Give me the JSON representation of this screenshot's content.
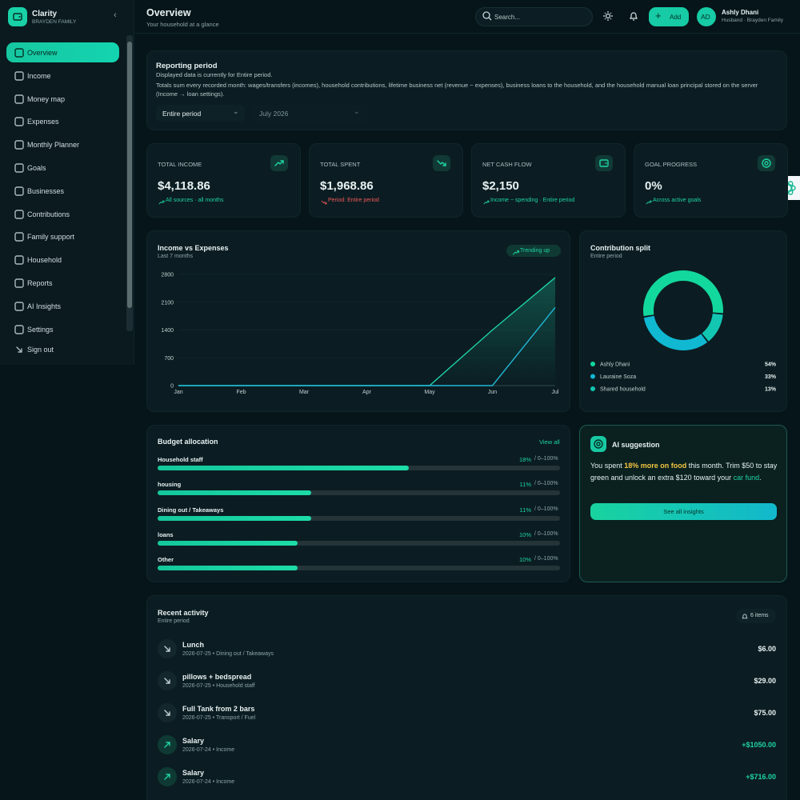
{
  "sidebar": {
    "brand": "Clarity",
    "family": "BRAYDEN FAMILY",
    "nav": [
      "Overview",
      "Income",
      "Money map",
      "Expenses",
      "Monthly Planner",
      "Goals",
      "Businesses",
      "Contributions",
      "Family support",
      "Household",
      "Reports",
      "AI Insights",
      "Settings"
    ],
    "sign_out": "Sign out"
  },
  "header": {
    "title": "Overview",
    "subtitle": "Your household at a glance",
    "search": "Search...",
    "add": "Add",
    "avatar": "AD",
    "user": "Ashly Dhani",
    "role": "Husband · Brayden Family"
  },
  "reporting": {
    "title": "Reporting period",
    "note": "Displayed data is currently for Entire period.",
    "description": "Totals sum every recorded month: wages/transfers (incomes), household contributions, lifetime business net (revenue − expenses), business loans to the household, and the household manual loan principal stored on the server (Income → loan settings).",
    "period": "Entire period",
    "month": "July 2026"
  },
  "stats": [
    {
      "label": "TOTAL INCOME",
      "value": "$4,118.86",
      "note": "All sources · all months",
      "tone": "up"
    },
    {
      "label": "TOTAL SPENT",
      "value": "$1,968.86",
      "note": "Period: Entire period",
      "tone": "down"
    },
    {
      "label": "NET CASH FLOW",
      "value": "$2,150",
      "note": "Income − spending · Entire period",
      "tone": "wallet"
    },
    {
      "label": "GOAL PROGRESS",
      "value": "0%",
      "note": "Across active goals",
      "tone": "goal"
    }
  ],
  "income_chart": {
    "type": "line",
    "title": "Income vs Expenses",
    "subtitle": "Last 7 months",
    "badge": "Trending up",
    "categories": [
      "Jan",
      "Feb",
      "Mar",
      "Apr",
      "May",
      "Jun",
      "Jul"
    ],
    "series": [
      {
        "color": "#1fd0a8",
        "values": [
          0,
          0,
          0,
          0,
          0,
          1400,
          2720
        ]
      },
      {
        "color": "#22b6d6",
        "values": [
          0,
          0,
          0,
          0,
          0,
          0,
          1969
        ]
      }
    ],
    "ylim": [
      0,
      2800
    ],
    "yticks": [
      0,
      700,
      1400,
      2100,
      2800
    ],
    "grid": true
  },
  "contribution": {
    "type": "pie",
    "title": "Contribution split",
    "subtitle": "Entire period",
    "items": [
      {
        "name": "Ashly Dhani",
        "value": 54,
        "label": "54%",
        "color": "#13d89d"
      },
      {
        "name": "Lauraine Soza",
        "value": 33,
        "label": "33%",
        "color": "#10b8d2"
      },
      {
        "name": "Shared household",
        "value": 13,
        "label": "13%",
        "color": "#12c6b2"
      }
    ]
  },
  "budget": {
    "title": "Budget allocation",
    "link": "View all",
    "range": "/ 0–100%",
    "items": [
      {
        "name": "Household staff",
        "value": 18,
        "label": "18%"
      },
      {
        "name": "housing",
        "value": 11,
        "label": "11%"
      },
      {
        "name": "Dining out / Takeaways",
        "value": 11,
        "label": "11%"
      },
      {
        "name": "loans",
        "value": 10,
        "label": "10%"
      },
      {
        "name": "Other",
        "value": 10,
        "label": "10%"
      }
    ]
  },
  "ai": {
    "title": "AI suggestion",
    "before": "You spent ",
    "highlight": "18% more on food",
    "middle": " this month. Trim $50 to stay green and unlock an extra $120 toward your ",
    "link": "car fund",
    "after": ".",
    "button": "See all insights"
  },
  "activity": {
    "title": "Recent activity",
    "subtitle": "Entire period",
    "count": "6 items",
    "items": [
      {
        "title": "Lunch",
        "meta": "2026-07-25 • Dining out / Takeaways",
        "amount": "$6.00",
        "direction": "out"
      },
      {
        "title": "pillows + bedspread",
        "meta": "2026-07-25 • Household staff",
        "amount": "$29.00",
        "direction": "out"
      },
      {
        "title": "Full Tank from 2 bars",
        "meta": "2026-07-25 • Transport / Fuel",
        "amount": "$75.00",
        "direction": "out"
      },
      {
        "title": "Salary",
        "meta": "2026-07-24 • Income",
        "amount": "+$1050.00",
        "direction": "in"
      },
      {
        "title": "Salary",
        "meta": "2026-07-24 • Income",
        "amount": "+$716.00",
        "direction": "in"
      }
    ]
  }
}
